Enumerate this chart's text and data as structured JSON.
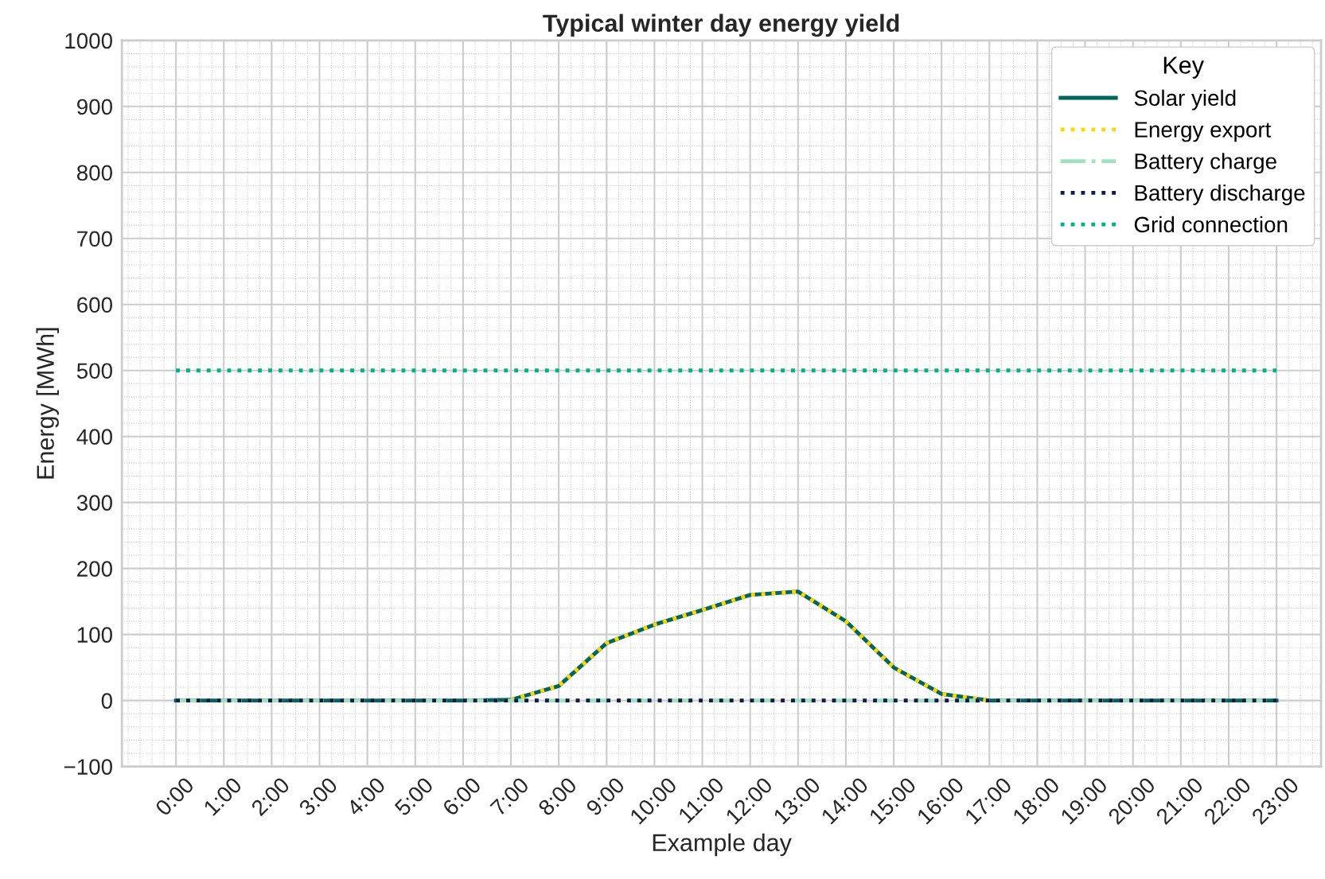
{
  "chart_data": {
    "type": "line",
    "title": "Typical winter day energy yield",
    "xlabel": "Example day",
    "ylabel": "Energy [MWh]",
    "legend_title": "Key",
    "categories": [
      "0:00",
      "1:00",
      "2:00",
      "3:00",
      "4:00",
      "5:00",
      "6:00",
      "7:00",
      "8:00",
      "9:00",
      "10:00",
      "11:00",
      "12:00",
      "13:00",
      "14:00",
      "15:00",
      "16:00",
      "17:00",
      "18:00",
      "19:00",
      "20:00",
      "21:00",
      "22:00",
      "23:00"
    ],
    "series": [
      {
        "name": "Solar yield",
        "color": "#00665a",
        "line_style": "solid",
        "values": [
          0,
          0,
          0,
          0,
          0,
          0,
          0,
          1,
          22,
          87,
          115,
          137,
          160,
          165,
          120,
          50,
          10,
          0,
          0,
          0,
          0,
          0,
          0,
          0
        ]
      },
      {
        "name": "Energy export",
        "color": "#ffd700",
        "line_style": "dotted",
        "values": [
          null,
          null,
          null,
          null,
          null,
          null,
          null,
          1,
          22,
          87,
          115,
          137,
          160,
          165,
          120,
          50,
          10,
          0,
          null,
          null,
          null,
          null,
          null,
          null
        ]
      },
      {
        "name": "Battery charge",
        "color": "#9fe2bf",
        "line_style": "dashdot",
        "values": [
          0,
          0,
          0,
          0,
          0,
          0,
          0,
          0,
          0,
          0,
          0,
          0,
          0,
          0,
          0,
          0,
          0,
          0,
          0,
          0,
          0,
          0,
          0,
          0
        ]
      },
      {
        "name": "Battery discharge",
        "color": "#101c4e",
        "line_style": "dotted",
        "values": [
          0,
          0,
          0,
          0,
          0,
          0,
          0,
          0,
          0,
          0,
          0,
          0,
          0,
          0,
          0,
          0,
          0,
          0,
          0,
          0,
          0,
          0,
          0,
          0
        ]
      },
      {
        "name": "Grid connection",
        "color": "#00b386",
        "line_style": "dotted",
        "values": [
          500,
          500,
          500,
          500,
          500,
          500,
          500,
          500,
          500,
          500,
          500,
          500,
          500,
          500,
          500,
          500,
          500,
          500,
          500,
          500,
          500,
          500,
          500,
          500
        ]
      }
    ],
    "ylim": [
      -100,
      1000
    ],
    "yticks": [
      -100,
      0,
      100,
      200,
      300,
      400,
      500,
      600,
      700,
      800,
      900,
      1000
    ],
    "grid": true,
    "legend": "top right",
    "marker": "none"
  }
}
